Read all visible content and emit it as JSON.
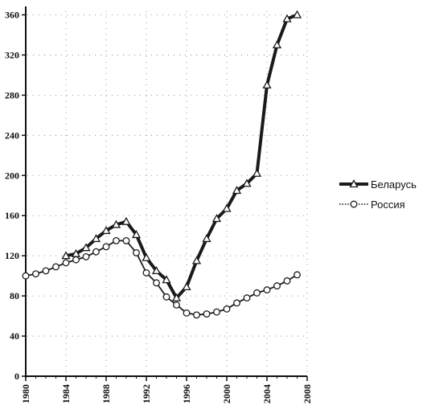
{
  "chart_data": {
    "type": "line",
    "title": "",
    "xlabel": "",
    "ylabel": "",
    "xlim": [
      1980,
      2008
    ],
    "ylim": [
      0,
      370
    ],
    "x_ticks": [
      "1980",
      "1984",
      "1988",
      "1992",
      "1996",
      "2000",
      "2004",
      "2008"
    ],
    "y_ticks": [
      "0",
      "40",
      "80",
      "120",
      "160",
      "200",
      "240",
      "280",
      "320",
      "360"
    ],
    "grid": "dotted",
    "legend_position": "right",
    "series": [
      {
        "name": "Беларусь",
        "marker": "triangle",
        "style": "thick",
        "color": "#1a1a1a",
        "x": [
          1984,
          1985,
          1986,
          1987,
          1988,
          1989,
          1990,
          1991,
          1992,
          1993,
          1994,
          1995,
          1996,
          1997,
          1998,
          1999,
          2000,
          2001,
          2002,
          2003,
          2004,
          2005,
          2006,
          2007
        ],
        "values": [
          120,
          122,
          128,
          137,
          145,
          151,
          154,
          141,
          118,
          105,
          96,
          78,
          89,
          115,
          137,
          157,
          167,
          185,
          192,
          202,
          290,
          330,
          356,
          360
        ]
      },
      {
        "name": "Россия",
        "marker": "circle",
        "style": "thin",
        "color": "#1a1a1a",
        "x": [
          1980,
          1981,
          1982,
          1983,
          1984,
          1985,
          1986,
          1987,
          1988,
          1989,
          1990,
          1991,
          1992,
          1993,
          1994,
          1995,
          1996,
          1997,
          1998,
          1999,
          2000,
          2001,
          2002,
          2003,
          2004,
          2005,
          2006,
          2007
        ],
        "values": [
          100,
          102,
          105,
          109,
          113,
          116,
          119,
          124,
          129,
          135,
          135,
          123,
          103,
          93,
          79,
          71,
          63,
          61,
          62,
          64,
          67,
          73,
          78,
          83,
          86,
          90,
          95,
          101
        ]
      }
    ]
  }
}
